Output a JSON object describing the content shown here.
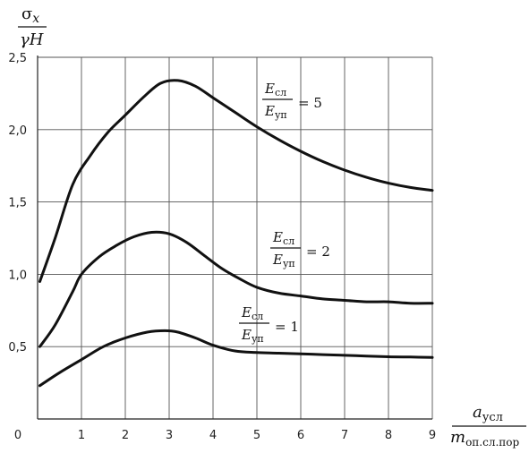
{
  "chart_data": {
    "type": "line",
    "y_axis_label": {
      "numerator": "σ",
      "numerator_sub": "x",
      "denominator": "γH"
    },
    "x_axis_label": {
      "numerator": "a",
      "numerator_sub": "усл",
      "denominator": "m",
      "denominator_sub": "оп.сл.пор"
    },
    "xlim": [
      0,
      9
    ],
    "ylim": [
      0,
      2.5
    ],
    "x_ticks": [
      "0",
      "1",
      "2",
      "3",
      "4",
      "5",
      "6",
      "7",
      "8",
      "9"
    ],
    "y_ticks": [
      "0,5",
      "1,0",
      "1,5",
      "2,0",
      "2,5"
    ],
    "grid": true,
    "series": [
      {
        "label": {
          "num": "E",
          "num_sub": "сл",
          "den": "E",
          "den_sub": "уп",
          "value": "= 5"
        },
        "x": [
          0.05,
          0.4,
          0.8,
          1.2,
          1.6,
          2.0,
          2.4,
          2.8,
          3.2,
          3.6,
          4.0,
          4.5,
          5.0,
          5.5,
          6.0,
          6.5,
          7.0,
          7.5,
          8.0,
          8.5,
          9.0
        ],
        "y": [
          0.95,
          1.25,
          1.62,
          1.82,
          1.98,
          2.1,
          2.22,
          2.32,
          2.34,
          2.3,
          2.22,
          2.12,
          2.02,
          1.93,
          1.85,
          1.78,
          1.72,
          1.67,
          1.63,
          1.6,
          1.58
        ]
      },
      {
        "label": {
          "num": "E",
          "num_sub": "сл",
          "den": "E",
          "den_sub": "уп",
          "value": "= 2"
        },
        "x": [
          0.05,
          0.4,
          0.8,
          1.0,
          1.4,
          1.8,
          2.2,
          2.6,
          3.0,
          3.4,
          3.8,
          4.2,
          4.6,
          5.0,
          5.5,
          6.0,
          6.5,
          7.0,
          7.5,
          8.0,
          8.5,
          9.0
        ],
        "y": [
          0.5,
          0.65,
          0.88,
          1.0,
          1.12,
          1.2,
          1.26,
          1.29,
          1.28,
          1.22,
          1.13,
          1.04,
          0.97,
          0.91,
          0.87,
          0.85,
          0.83,
          0.82,
          0.81,
          0.81,
          0.8,
          0.8
        ]
      },
      {
        "label": {
          "num": "E",
          "num_sub": "сл",
          "den": "E",
          "den_sub": "уп",
          "value": "= 1"
        },
        "x": [
          0.05,
          0.5,
          1.0,
          1.5,
          2.0,
          2.5,
          2.9,
          3.2,
          3.6,
          4.0,
          4.5,
          5.0,
          5.5,
          6.0,
          6.5,
          7.0,
          7.5,
          8.0,
          8.5,
          9.0
        ],
        "y": [
          0.23,
          0.32,
          0.41,
          0.5,
          0.56,
          0.6,
          0.61,
          0.6,
          0.56,
          0.51,
          0.47,
          0.46,
          0.455,
          0.45,
          0.445,
          0.44,
          0.435,
          0.43,
          0.428,
          0.425
        ]
      }
    ]
  }
}
